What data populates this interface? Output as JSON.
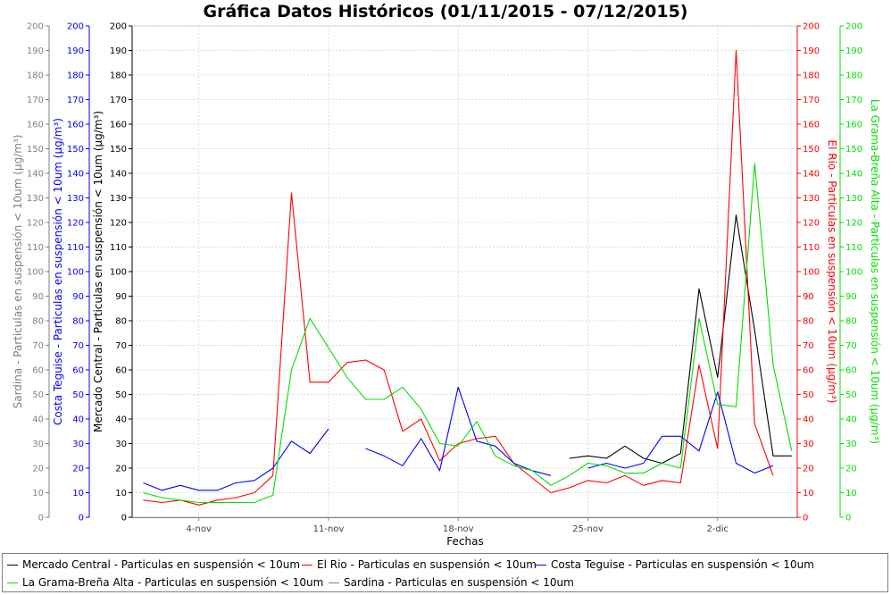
{
  "chart_data": {
    "type": "line",
    "title": "Gráfica Datos Históricos (01/11/2015 - 07/12/2015)",
    "xlabel": "Fechas",
    "x_ticks": [
      "4-nov",
      "11-nov",
      "18-nov",
      "25-nov",
      "2-dic"
    ],
    "x_tick_days": [
      3,
      10,
      17,
      24,
      31
    ],
    "x_range_days": [
      -0.6,
      35.3
    ],
    "ylim": [
      0,
      200
    ],
    "y_ticks": [
      0,
      10,
      20,
      30,
      40,
      50,
      60,
      70,
      80,
      90,
      100,
      110,
      120,
      130,
      140,
      150,
      160,
      170,
      180,
      190,
      200
    ],
    "axes": [
      {
        "id": "sardina",
        "label": "Sardina - Particulas en suspensión < 10um (µg/m³)",
        "color": "#808080"
      },
      {
        "id": "costa",
        "label": "Costa Teguise - Particulas en suspensión < 10um (µg/m³)",
        "color": "#0000ff"
      },
      {
        "id": "mercado",
        "label": "Mercado Central - Particulas en suspensión < 10um (µg/m³)",
        "color": "#000000"
      },
      {
        "id": "rio",
        "label": "El Rio - Particulas en suspensión < 10um (µg/m³)",
        "color": "#ff0000"
      },
      {
        "id": "grama",
        "label": "La Grama-Breña Alta - Particulas en suspensión < 10um (µg/m³)",
        "color": "#00e000"
      }
    ],
    "series": [
      {
        "name": "Mercado Central - Particulas en suspensión < 10um",
        "color": "#000000",
        "segments": [
          {
            "x": [
              23,
              24,
              25,
              26,
              27,
              28,
              29,
              30,
              31,
              32,
              33,
              34,
              35
            ],
            "y": [
              24,
              25,
              24,
              29,
              24,
              22,
              26,
              93,
              57,
              123,
              76,
              25,
              25
            ]
          }
        ]
      },
      {
        "name": "El Rio - Particulas en suspensión < 10um",
        "color": "#ff0000",
        "segments": [
          {
            "x": [
              0,
              1,
              2,
              3,
              4,
              5,
              6,
              7,
              8,
              9,
              10,
              11,
              12,
              13,
              14,
              15,
              16,
              17,
              18,
              19,
              20,
              21,
              22,
              23,
              24,
              25,
              26,
              27,
              28,
              29,
              30,
              31,
              32,
              33,
              34,
              35
            ],
            "y": [
              7,
              6,
              7,
              5,
              7,
              8,
              10,
              17,
              132,
              55,
              55,
              63,
              64,
              60,
              35,
              40,
              23,
              30,
              32,
              33,
              22,
              16,
              10,
              12,
              15,
              14,
              17,
              13,
              15,
              14,
              62,
              28,
              190,
              38,
              17,
              null
            ]
          }
        ]
      },
      {
        "name": "Costa Teguise - Particulas en suspensión < 10um",
        "color": "#0000ff",
        "segments": [
          {
            "x": [
              0,
              1,
              2,
              3,
              4,
              5,
              6,
              7,
              8,
              9,
              10
            ],
            "y": [
              14,
              11,
              13,
              11,
              11,
              14,
              15,
              20,
              31,
              26,
              36
            ]
          },
          {
            "x": [
              12,
              13,
              14,
              15,
              16,
              17,
              18,
              19,
              20,
              21,
              22
            ],
            "y": [
              28,
              25,
              21,
              32,
              19,
              53,
              31,
              29,
              22,
              19,
              17
            ]
          },
          {
            "x": [
              24,
              25,
              26,
              27,
              28,
              29,
              30,
              31,
              32,
              33,
              34,
              35
            ],
            "y": [
              20,
              22,
              20,
              22,
              33,
              33,
              27,
              51,
              22,
              18,
              21,
              null
            ]
          }
        ]
      },
      {
        "name": "La Grama-Breña Alta - Particulas en suspensión < 10um",
        "color": "#00e000",
        "segments": [
          {
            "x": [
              0,
              1,
              2,
              3,
              4,
              5,
              6,
              7,
              8,
              9,
              10,
              11,
              12,
              13,
              14,
              15,
              16,
              17,
              18,
              19,
              20,
              21,
              22,
              23,
              24,
              25,
              26,
              27,
              28,
              29,
              30,
              31,
              32,
              33,
              34,
              35
            ],
            "y": [
              10,
              8,
              7,
              6,
              6,
              6,
              6,
              9,
              60,
              81,
              69,
              57,
              48,
              48,
              53,
              44,
              30,
              29,
              39,
              25,
              21,
              19,
              13,
              17,
              22,
              21,
              18,
              18,
              22,
              20,
              81,
              46,
              45,
              144,
              62,
              27
            ]
          }
        ]
      },
      {
        "name": "Sardina - Particulas en suspensión < 10um",
        "color": "#808080",
        "segments": []
      }
    ]
  }
}
